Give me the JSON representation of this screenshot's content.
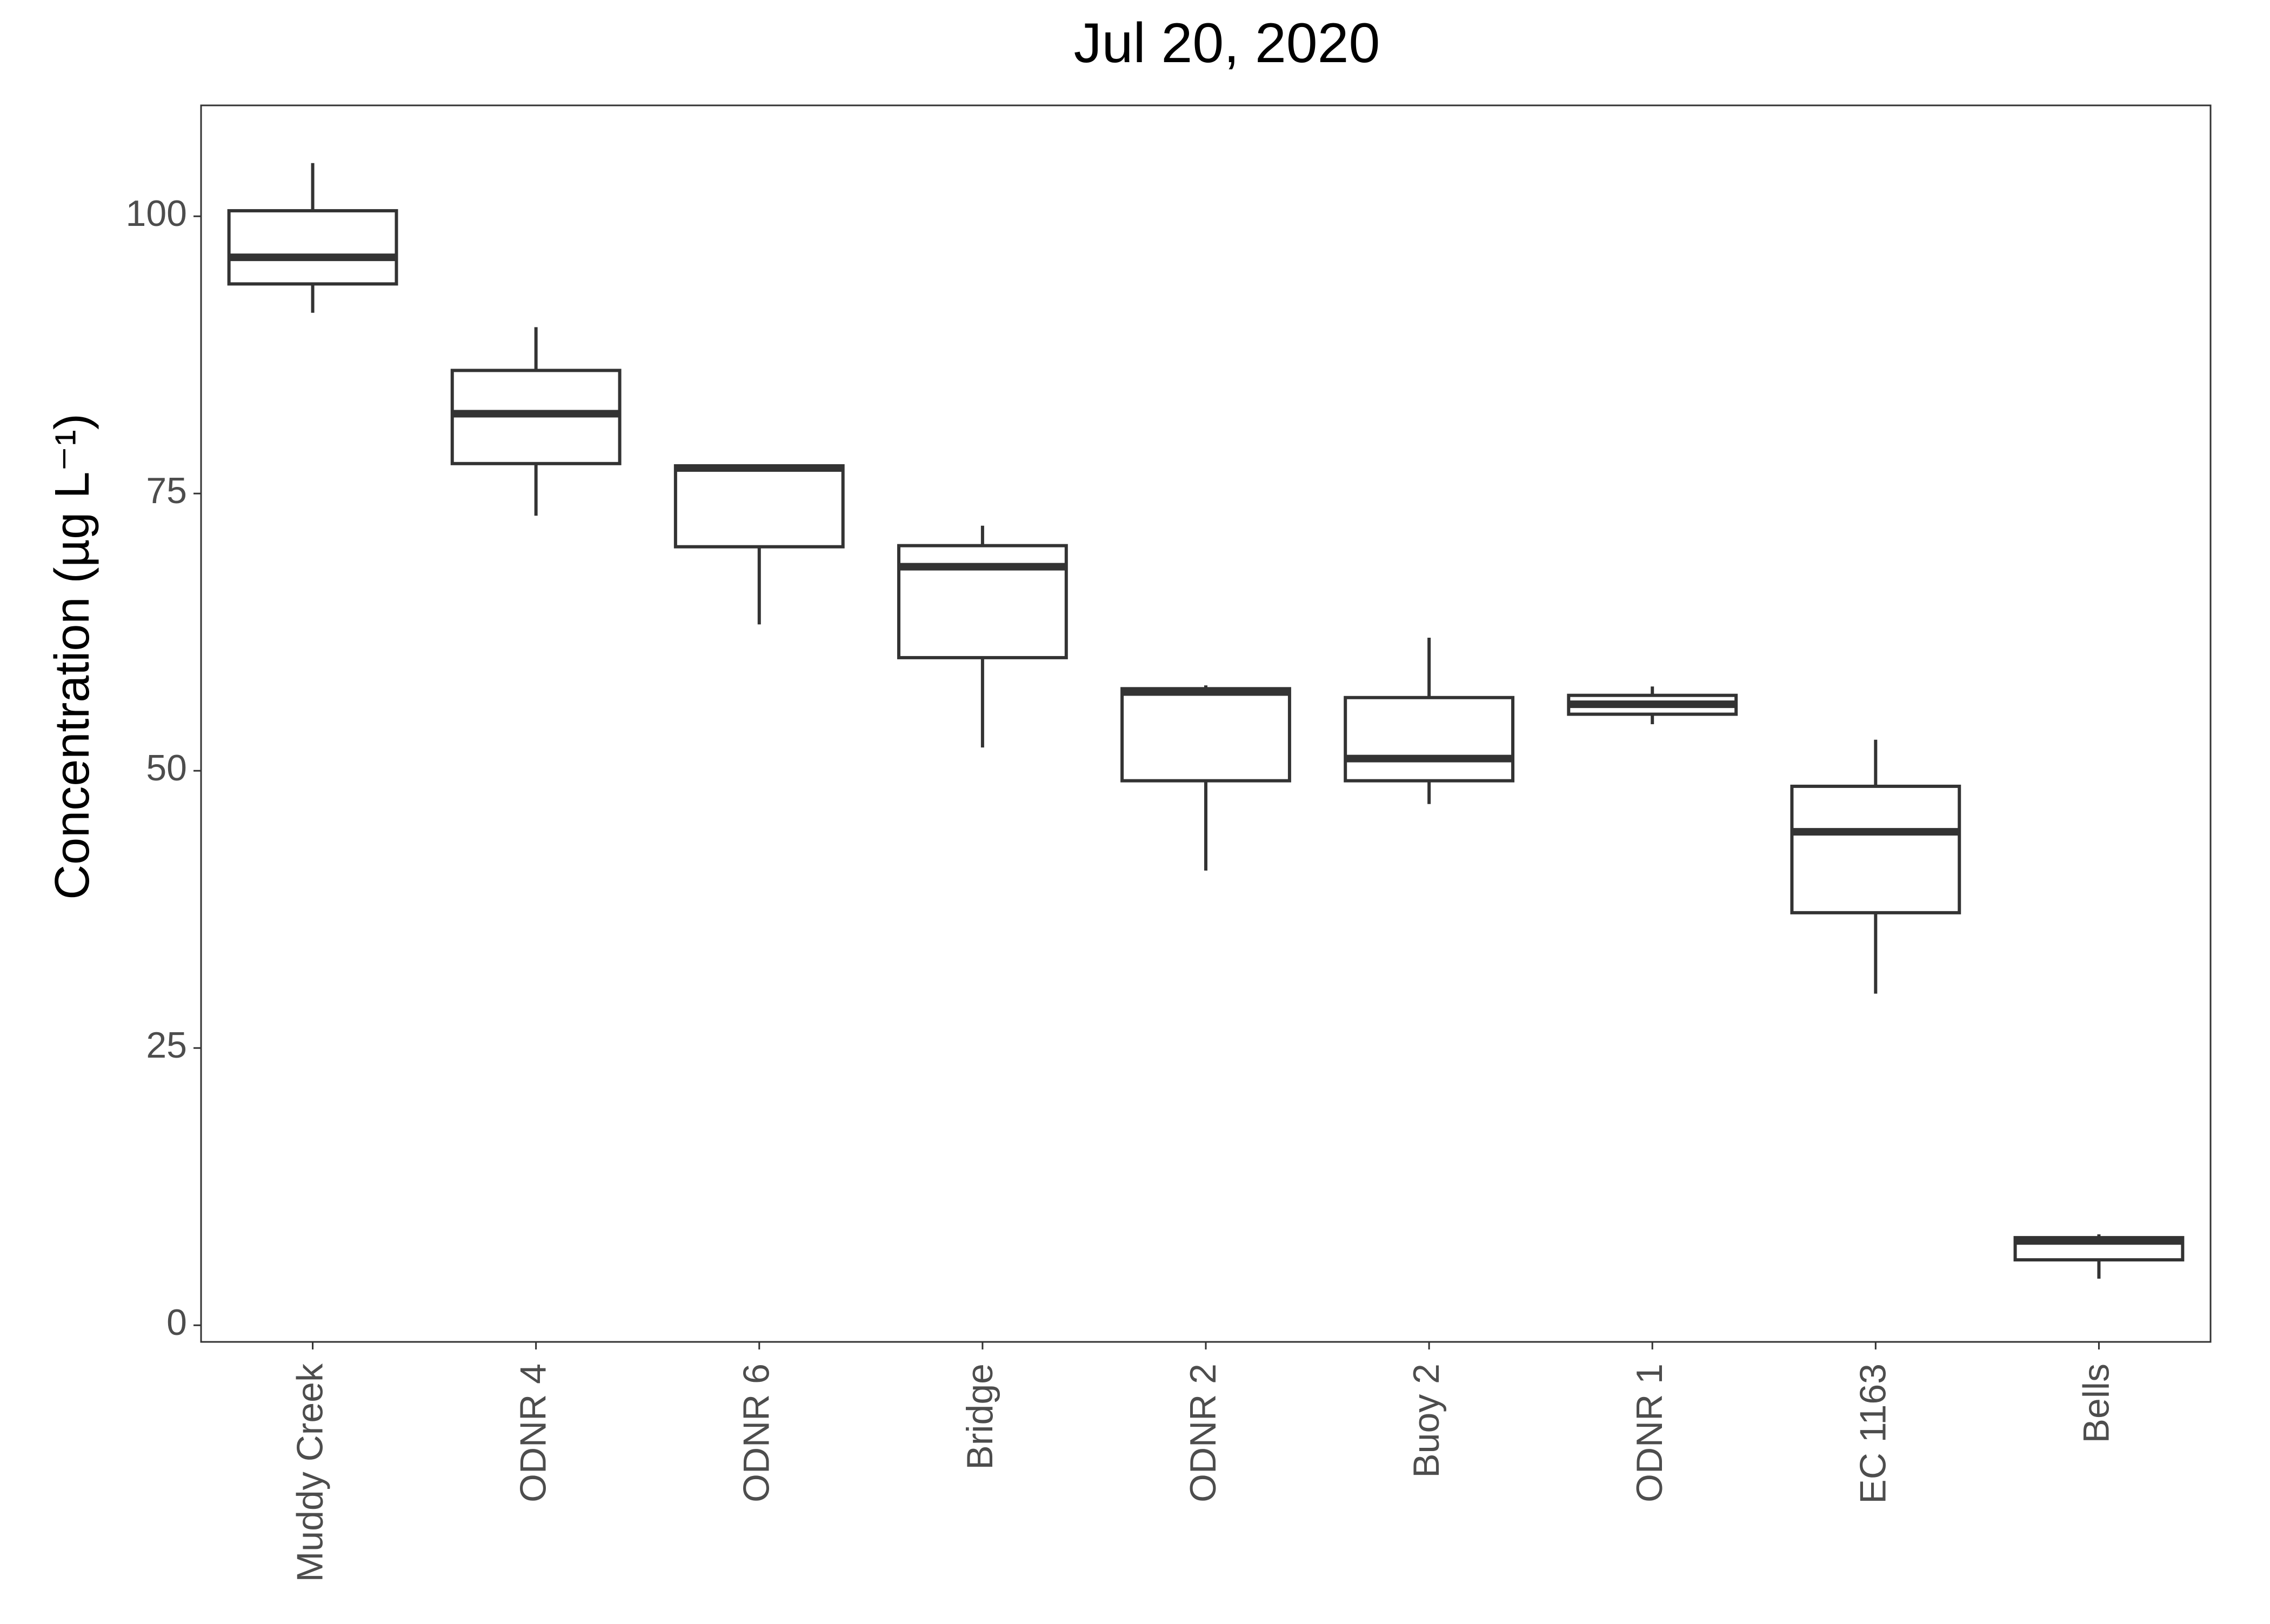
{
  "chart_data": {
    "type": "box",
    "title": "Jul 20, 2020",
    "xlabel": "",
    "ylabel": "Concentration (µg L⁻¹)",
    "ylim": [
      -1.5,
      110
    ],
    "yticks": [
      0,
      25,
      50,
      75,
      100
    ],
    "grid": false,
    "categories": [
      "Muddy Creek",
      "ODNR 4",
      "ODNR 6",
      "Bridge",
      "ODNR 2",
      "Buoy 2",
      "ODNR 1",
      "EC 1163",
      "Bells"
    ],
    "boxes": [
      {
        "category": "Muddy Creek",
        "whisker_low": 91.3,
        "q1": 93.9,
        "median": 96.3,
        "q3": 100.5,
        "whisker_high": 104.8
      },
      {
        "category": "ODNR 4",
        "whisker_low": 73.0,
        "q1": 77.7,
        "median": 82.2,
        "q3": 86.1,
        "whisker_high": 90.0
      },
      {
        "category": "ODNR 6",
        "whisker_low": 63.2,
        "q1": 70.2,
        "median": 77.3,
        "q3": 77.5,
        "whisker_high": 77.6
      },
      {
        "category": "Bridge",
        "whisker_low": 52.1,
        "q1": 60.2,
        "median": 68.4,
        "q3": 70.3,
        "whisker_high": 72.1
      },
      {
        "category": "ODNR 2",
        "whisker_low": 41.0,
        "q1": 49.1,
        "median": 57.1,
        "q3": 57.4,
        "whisker_high": 57.7
      },
      {
        "category": "Buoy 2",
        "whisker_low": 47.0,
        "q1": 49.1,
        "median": 51.1,
        "q3": 56.6,
        "whisker_high": 62.0
      },
      {
        "category": "ODNR 1",
        "whisker_low": 54.2,
        "q1": 55.1,
        "median": 56.0,
        "q3": 56.8,
        "whisker_high": 57.6
      },
      {
        "category": "EC 1163",
        "whisker_low": 29.9,
        "q1": 37.2,
        "median": 44.5,
        "q3": 48.6,
        "whisker_high": 52.8
      },
      {
        "category": "Bells",
        "whisker_low": 4.2,
        "q1": 5.9,
        "median": 7.6,
        "q3": 7.9,
        "whisker_high": 8.2
      }
    ]
  }
}
